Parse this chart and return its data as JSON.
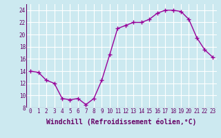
{
  "x": [
    0,
    1,
    2,
    3,
    4,
    5,
    6,
    7,
    8,
    9,
    10,
    11,
    12,
    13,
    14,
    15,
    16,
    17,
    18,
    19,
    20,
    21,
    22,
    23
  ],
  "y": [
    14.0,
    13.8,
    12.5,
    12.0,
    9.5,
    9.3,
    9.5,
    8.5,
    9.5,
    12.5,
    16.7,
    21.0,
    21.5,
    22.0,
    22.0,
    22.5,
    23.5,
    24.0,
    24.0,
    23.8,
    22.5,
    19.5,
    17.5,
    16.3
  ],
  "line_color": "#990099",
  "marker": "+",
  "marker_size": 4,
  "linewidth": 1.0,
  "markeredgewidth": 1.0,
  "xlabel": "Windchill (Refroidissement éolien,°C)",
  "xlim": [
    -0.5,
    23.5
  ],
  "ylim": [
    8,
    25
  ],
  "yticks": [
    8,
    10,
    12,
    14,
    16,
    18,
    20,
    22,
    24
  ],
  "xticks": [
    0,
    1,
    2,
    3,
    4,
    5,
    6,
    7,
    8,
    9,
    10,
    11,
    12,
    13,
    14,
    15,
    16,
    17,
    18,
    19,
    20,
    21,
    22,
    23
  ],
  "background_color": "#cce9f0",
  "grid_color": "#ffffff",
  "tick_label_fontsize": 5.5,
  "xlabel_fontsize": 7.0,
  "label_color": "#660066"
}
